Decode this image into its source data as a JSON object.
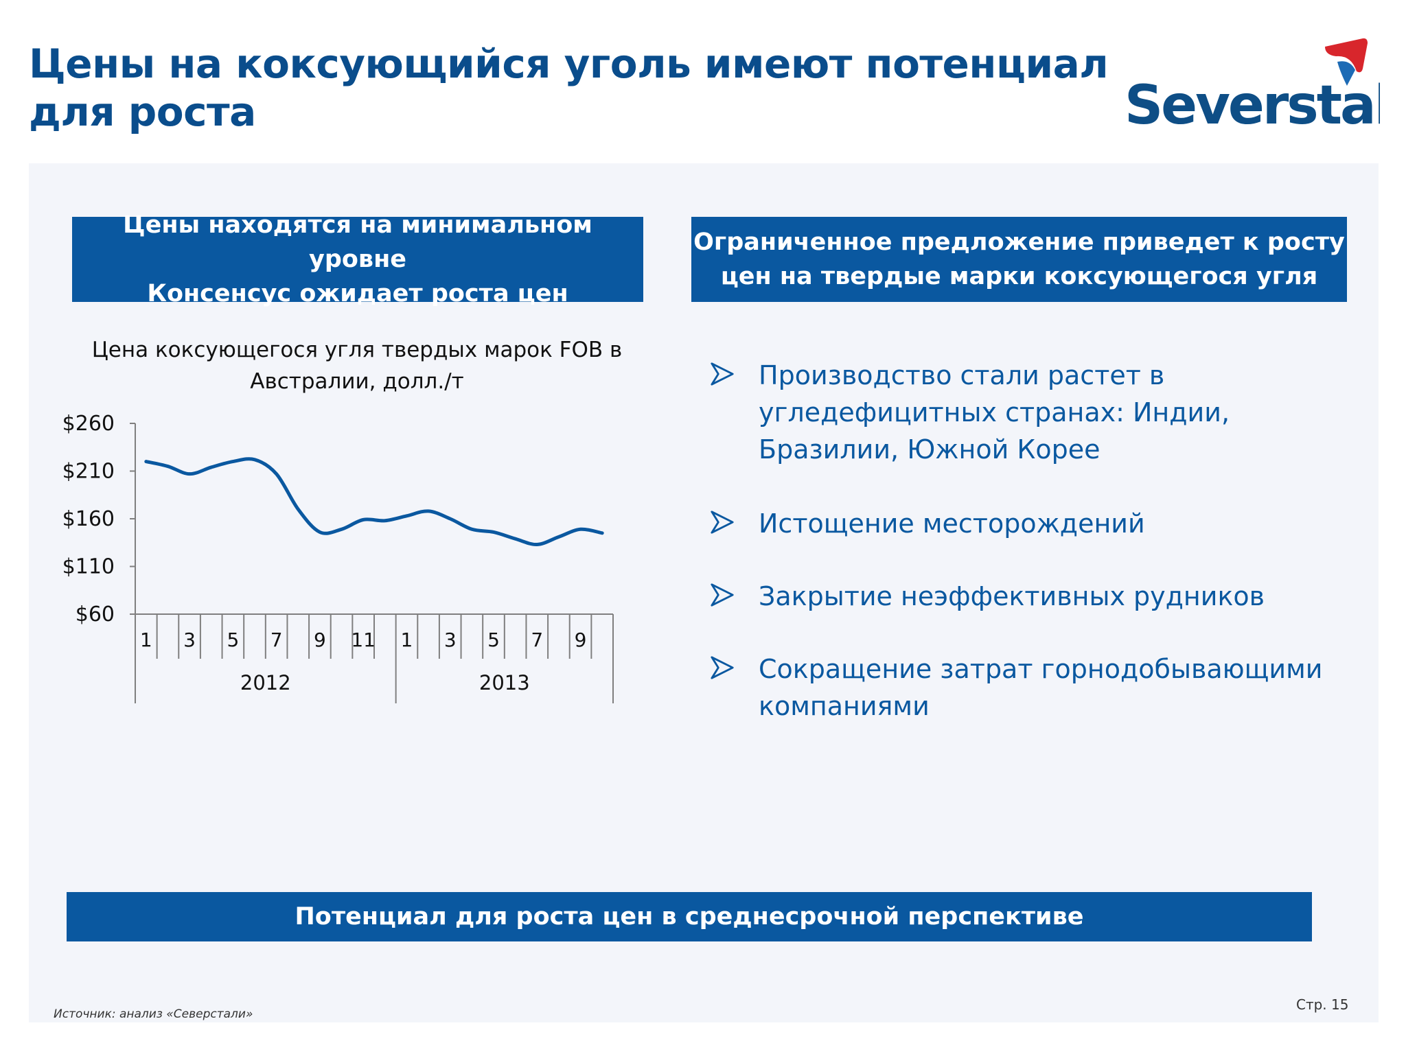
{
  "title": "Цены на коксующийся уголь имеют потенциал для роста",
  "logo": {
    "text": "Severstal",
    "mark_color_red": "#d8262c",
    "mark_color_blue": "#1d6bb5"
  },
  "colors": {
    "brand_blue": "#0a58a0",
    "title_blue": "#0a4d8c",
    "line": "#0a58a0"
  },
  "left_header": {
    "line1": "Цены находятся на минимальном уровне",
    "line2": "Консенсус ожидает роста цен"
  },
  "right_header": {
    "line1": "Ограниченное предложение приведет к росту",
    "line2": "цен на твердые марки коксующегося угля"
  },
  "chart_title": "Цена коксующегося угля твердых марок FOB в Австралии, долл./т",
  "chart_data": {
    "type": "line",
    "title": "Цена коксующегося угля твердых марок FOB в Австралии, долл./т",
    "y_tick_labels": [
      "$260",
      "$210",
      "$160",
      "$110",
      "$60"
    ],
    "ylim": [
      60,
      260
    ],
    "x_tick_labels": [
      "1",
      "3",
      "5",
      "7",
      "9",
      "11",
      "1",
      "3",
      "5",
      "7",
      "9"
    ],
    "groups": [
      {
        "label": "2012",
        "months": 12
      },
      {
        "label": "2013",
        "months": 10
      }
    ],
    "series": [
      {
        "values": [
          220,
          215,
          207,
          214,
          220,
          222,
          207,
          170,
          146,
          149,
          159,
          158,
          163,
          168,
          160,
          149,
          146,
          139,
          133,
          141,
          149,
          145
        ]
      }
    ]
  },
  "bullets": [
    "Производство стали растет в угледефицитных странах: Индии, Бразилии, Южной Корее",
    "Истощение месторождений",
    "Закрытие неэффективных рудников",
    "Сокращение затрат горнодобывающими компаниями"
  ],
  "bottom_banner": "Потенциал для роста цен в среднесрочной перспективе",
  "source": "Источник:  анализ «Северстали»",
  "page": "Стр.  15"
}
